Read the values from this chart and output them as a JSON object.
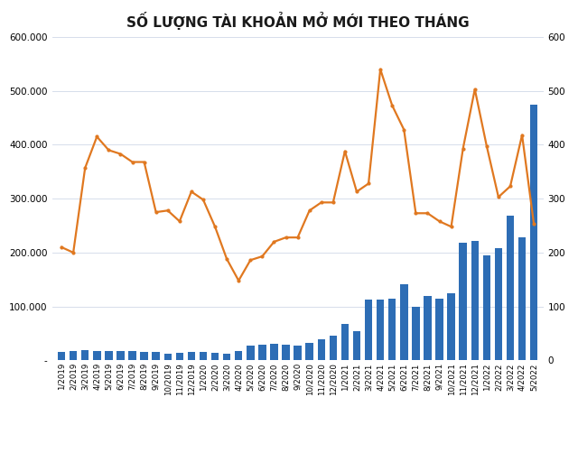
{
  "title": "SỐ LƯỢNG TÀI KHOẢN MỞ MỚI THEO THÁNG",
  "title_fontsize": 11,
  "bar_color": "#2D6DB5",
  "line_color": "#E07820",
  "categories": [
    "1/2019",
    "2/2019",
    "3/2019",
    "4/2019",
    "5/2019",
    "6/2019",
    "7/2019",
    "8/2019",
    "9/2019",
    "10/2019",
    "11/2019",
    "12/2019",
    "1/2020",
    "2/2020",
    "3/2020",
    "4/2020",
    "5/2020",
    "6/2020",
    "7/2020",
    "8/2020",
    "9/2020",
    "10/2020",
    "11/2020",
    "12/2020",
    "1/2021",
    "2/2021",
    "3/2021",
    "4/2021",
    "5/2021",
    "6/2021",
    "7/2021",
    "8/2021",
    "9/2021",
    "10/2021",
    "11/2021",
    "12/2021",
    "1/2022",
    "2/2022",
    "3/2022",
    "4/2022",
    "5/2022"
  ],
  "bar_values": [
    16000,
    17000,
    19000,
    18000,
    17000,
    17000,
    17000,
    16000,
    15000,
    13000,
    14000,
    15000,
    16000,
    14000,
    13000,
    17000,
    27000,
    29000,
    30000,
    29000,
    28000,
    32000,
    39000,
    46000,
    68000,
    55000,
    112000,
    112000,
    114000,
    142000,
    99000,
    119000,
    114000,
    124000,
    219000,
    221000,
    194000,
    209000,
    269000,
    229000,
    474000
  ],
  "line_values": [
    210,
    200,
    357,
    415,
    390,
    383,
    368,
    368,
    275,
    278,
    258,
    313,
    298,
    248,
    188,
    148,
    186,
    193,
    220,
    228,
    228,
    278,
    293,
    293,
    388,
    313,
    328,
    540,
    473,
    428,
    273,
    273,
    258,
    248,
    393,
    503,
    398,
    303,
    323,
    418,
    253
  ],
  "ylim_left": [
    0,
    600000
  ],
  "ylim_right": [
    0,
    600
  ],
  "yticks_left": [
    0,
    100000,
    200000,
    300000,
    400000,
    500000,
    600000
  ],
  "yticks_right": [
    0,
    100,
    200,
    300,
    400,
    500,
    600
  ],
  "ytick_labels_left": [
    "-",
    "100.000",
    "200.000",
    "300.000",
    "400.000",
    "500.000",
    "600.000"
  ],
  "ytick_labels_right": [
    "0",
    "100",
    "200",
    "300",
    "400",
    "500",
    "600"
  ],
  "bg_color": "#FFFFFF",
  "grid_color": "#D0D8E8"
}
